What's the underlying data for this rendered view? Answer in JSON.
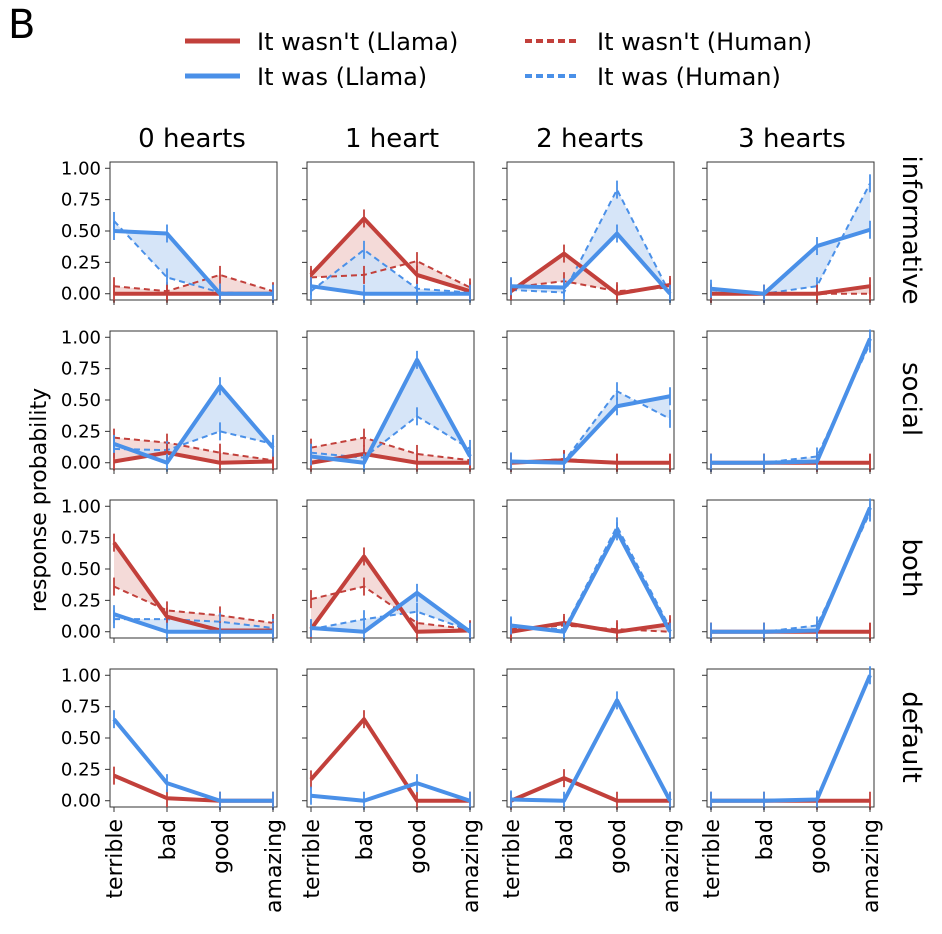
{
  "panel_letter": "B",
  "legend": [
    {
      "label": "It wasn't (Llama)",
      "color": "#c2403b",
      "style": "solid"
    },
    {
      "label": "It was (Llama)",
      "color": "#4a90e8",
      "style": "solid"
    },
    {
      "label": "It wasn't (Human)",
      "color": "#c2403b",
      "style": "dashed"
    },
    {
      "label": "It was (Human)",
      "color": "#4a90e8",
      "style": "dashed"
    }
  ],
  "ylabel": "response probability",
  "column_titles": [
    "0 hearts",
    "1 heart",
    "2 hearts",
    "3 hearts"
  ],
  "row_titles": [
    "informative",
    "social",
    "both",
    "default"
  ],
  "colors": {
    "red": "#c2403b",
    "blue": "#4a90e8",
    "red_fill": "#f2d3d1",
    "blue_fill": "#cfe0f7"
  },
  "chart_data": {
    "type": "line",
    "layout": "4x4 grid (rows × columns)",
    "categories": [
      "terrible",
      "bad",
      "good",
      "amazing"
    ],
    "yticks": [
      "0.00",
      "0.25",
      "0.50",
      "0.75",
      "1.00"
    ],
    "ylim": [
      -0.05,
      1.05
    ],
    "panels": [
      {
        "row": "informative",
        "col": "0 hearts",
        "series": [
          {
            "name": "It wasn't (Llama)",
            "values": [
              0.0,
              0.0,
              0.0,
              0.0
            ]
          },
          {
            "name": "It was (Llama)",
            "values": [
              0.5,
              0.48,
              0.0,
              0.0
            ]
          },
          {
            "name": "It wasn't (Human)",
            "values": [
              0.06,
              0.02,
              0.15,
              0.02
            ]
          },
          {
            "name": "It was (Human)",
            "values": [
              0.58,
              0.13,
              0.01,
              0.0
            ]
          }
        ]
      },
      {
        "row": "informative",
        "col": "1 heart",
        "series": [
          {
            "name": "It wasn't (Llama)",
            "values": [
              0.15,
              0.6,
              0.15,
              0.02
            ]
          },
          {
            "name": "It was (Llama)",
            "values": [
              0.06,
              0.0,
              0.0,
              0.0
            ]
          },
          {
            "name": "It wasn't (Human)",
            "values": [
              0.13,
              0.15,
              0.26,
              0.05
            ]
          },
          {
            "name": "It was (Human)",
            "values": [
              0.02,
              0.35,
              0.04,
              0.01
            ]
          }
        ]
      },
      {
        "row": "informative",
        "col": "2 hearts",
        "series": [
          {
            "name": "It wasn't (Llama)",
            "values": [
              0.02,
              0.32,
              0.0,
              0.07
            ]
          },
          {
            "name": "It was (Llama)",
            "values": [
              0.06,
              0.05,
              0.48,
              0.0
            ]
          },
          {
            "name": "It wasn't (Human)",
            "values": [
              0.05,
              0.1,
              0.02,
              0.05
            ]
          },
          {
            "name": "It was (Human)",
            "values": [
              0.03,
              0.01,
              0.83,
              0.0
            ]
          }
        ]
      },
      {
        "row": "informative",
        "col": "3 hearts",
        "series": [
          {
            "name": "It wasn't (Llama)",
            "values": [
              0.0,
              0.0,
              0.0,
              0.06
            ]
          },
          {
            "name": "It was (Llama)",
            "values": [
              0.04,
              0.0,
              0.38,
              0.51
            ]
          },
          {
            "name": "It wasn't (Human)",
            "values": [
              0.0,
              0.0,
              0.0,
              0.0
            ]
          },
          {
            "name": "It was (Human)",
            "values": [
              0.01,
              0.0,
              0.06,
              0.88
            ]
          }
        ]
      },
      {
        "row": "social",
        "col": "0 hearts",
        "series": [
          {
            "name": "It wasn't (Llama)",
            "values": [
              0.01,
              0.08,
              0.0,
              0.01
            ]
          },
          {
            "name": "It was (Llama)",
            "values": [
              0.15,
              0.0,
              0.61,
              0.12
            ]
          },
          {
            "name": "It wasn't (Human)",
            "values": [
              0.2,
              0.16,
              0.08,
              0.02
            ]
          },
          {
            "name": "It was (Human)",
            "values": [
              0.11,
              0.1,
              0.25,
              0.15
            ]
          }
        ]
      },
      {
        "row": "social",
        "col": "1 heart",
        "series": [
          {
            "name": "It wasn't (Llama)",
            "values": [
              0.0,
              0.07,
              0.0,
              0.0
            ]
          },
          {
            "name": "It was (Llama)",
            "values": [
              0.05,
              0.0,
              0.82,
              0.05
            ]
          },
          {
            "name": "It wasn't (Human)",
            "values": [
              0.12,
              0.2,
              0.07,
              0.02
            ]
          },
          {
            "name": "It was (Human)",
            "values": [
              0.08,
              0.04,
              0.37,
              0.11
            ]
          }
        ]
      },
      {
        "row": "social",
        "col": "2 hearts",
        "series": [
          {
            "name": "It wasn't (Llama)",
            "values": [
              0.0,
              0.02,
              0.0,
              0.0
            ]
          },
          {
            "name": "It was (Llama)",
            "values": [
              0.01,
              0.0,
              0.45,
              0.53
            ]
          },
          {
            "name": "It wasn't (Human)",
            "values": [
              0.0,
              0.03,
              0.0,
              0.0
            ]
          },
          {
            "name": "It was (Human)",
            "values": [
              0.01,
              0.01,
              0.57,
              0.35
            ]
          }
        ]
      },
      {
        "row": "social",
        "col": "3 hearts",
        "series": [
          {
            "name": "It wasn't (Llama)",
            "values": [
              0.0,
              0.0,
              0.0,
              0.0
            ]
          },
          {
            "name": "It was (Llama)",
            "values": [
              0.0,
              0.0,
              0.01,
              0.99
            ]
          },
          {
            "name": "It wasn't (Human)",
            "values": [
              0.0,
              0.0,
              0.0,
              0.0
            ]
          },
          {
            "name": "It was (Human)",
            "values": [
              0.0,
              0.0,
              0.05,
              0.95
            ]
          }
        ]
      },
      {
        "row": "both",
        "col": "0 hearts",
        "series": [
          {
            "name": "It wasn't (Llama)",
            "values": [
              0.71,
              0.12,
              0.01,
              0.01
            ]
          },
          {
            "name": "It was (Llama)",
            "values": [
              0.14,
              0.0,
              0.0,
              0.0
            ]
          },
          {
            "name": "It wasn't (Human)",
            "values": [
              0.36,
              0.17,
              0.13,
              0.07
            ]
          },
          {
            "name": "It was (Human)",
            "values": [
              0.1,
              0.1,
              0.08,
              0.03
            ]
          }
        ]
      },
      {
        "row": "both",
        "col": "1 heart",
        "series": [
          {
            "name": "It wasn't (Llama)",
            "values": [
              0.02,
              0.6,
              0.0,
              0.01
            ]
          },
          {
            "name": "It was (Llama)",
            "values": [
              0.03,
              0.0,
              0.31,
              0.0
            ]
          },
          {
            "name": "It wasn't (Human)",
            "values": [
              0.26,
              0.36,
              0.07,
              0.02
            ]
          },
          {
            "name": "It was (Human)",
            "values": [
              0.02,
              0.1,
              0.16,
              0.01
            ]
          }
        ]
      },
      {
        "row": "both",
        "col": "2 hearts",
        "series": [
          {
            "name": "It wasn't (Llama)",
            "values": [
              0.0,
              0.07,
              0.0,
              0.06
            ]
          },
          {
            "name": "It was (Llama)",
            "values": [
              0.05,
              0.0,
              0.8,
              0.0
            ]
          },
          {
            "name": "It wasn't (Human)",
            "values": [
              0.02,
              0.05,
              0.02,
              0.0
            ]
          },
          {
            "name": "It was (Human)",
            "values": [
              0.04,
              0.02,
              0.84,
              0.03
            ]
          }
        ]
      },
      {
        "row": "both",
        "col": "3 hearts",
        "series": [
          {
            "name": "It wasn't (Llama)",
            "values": [
              0.0,
              0.0,
              0.0,
              0.0
            ]
          },
          {
            "name": "It was (Llama)",
            "values": [
              0.0,
              0.0,
              0.01,
              0.99
            ]
          },
          {
            "name": "It wasn't (Human)",
            "values": [
              0.0,
              0.0,
              0.0,
              0.0
            ]
          },
          {
            "name": "It was (Human)",
            "values": [
              0.0,
              0.0,
              0.05,
              0.95
            ]
          }
        ]
      },
      {
        "row": "default",
        "col": "0 hearts",
        "series": [
          {
            "name": "It wasn't (Llama)",
            "values": [
              0.2,
              0.02,
              0.0,
              0.0
            ]
          },
          {
            "name": "It was (Llama)",
            "values": [
              0.65,
              0.14,
              0.0,
              0.0
            ]
          }
        ]
      },
      {
        "row": "default",
        "col": "1 heart",
        "series": [
          {
            "name": "It wasn't (Llama)",
            "values": [
              0.17,
              0.65,
              0.0,
              0.0
            ]
          },
          {
            "name": "It was (Llama)",
            "values": [
              0.04,
              0.0,
              0.14,
              0.0
            ]
          }
        ]
      },
      {
        "row": "default",
        "col": "2 hearts",
        "series": [
          {
            "name": "It wasn't (Llama)",
            "values": [
              0.0,
              0.18,
              0.0,
              0.0
            ]
          },
          {
            "name": "It was (Llama)",
            "values": [
              0.01,
              0.0,
              0.8,
              0.0
            ]
          }
        ]
      },
      {
        "row": "default",
        "col": "3 hearts",
        "series": [
          {
            "name": "It wasn't (Llama)",
            "values": [
              0.0,
              0.0,
              0.0,
              0.0
            ]
          },
          {
            "name": "It was (Llama)",
            "values": [
              0.0,
              0.0,
              0.01,
              1.0
            ]
          }
        ]
      }
    ]
  }
}
